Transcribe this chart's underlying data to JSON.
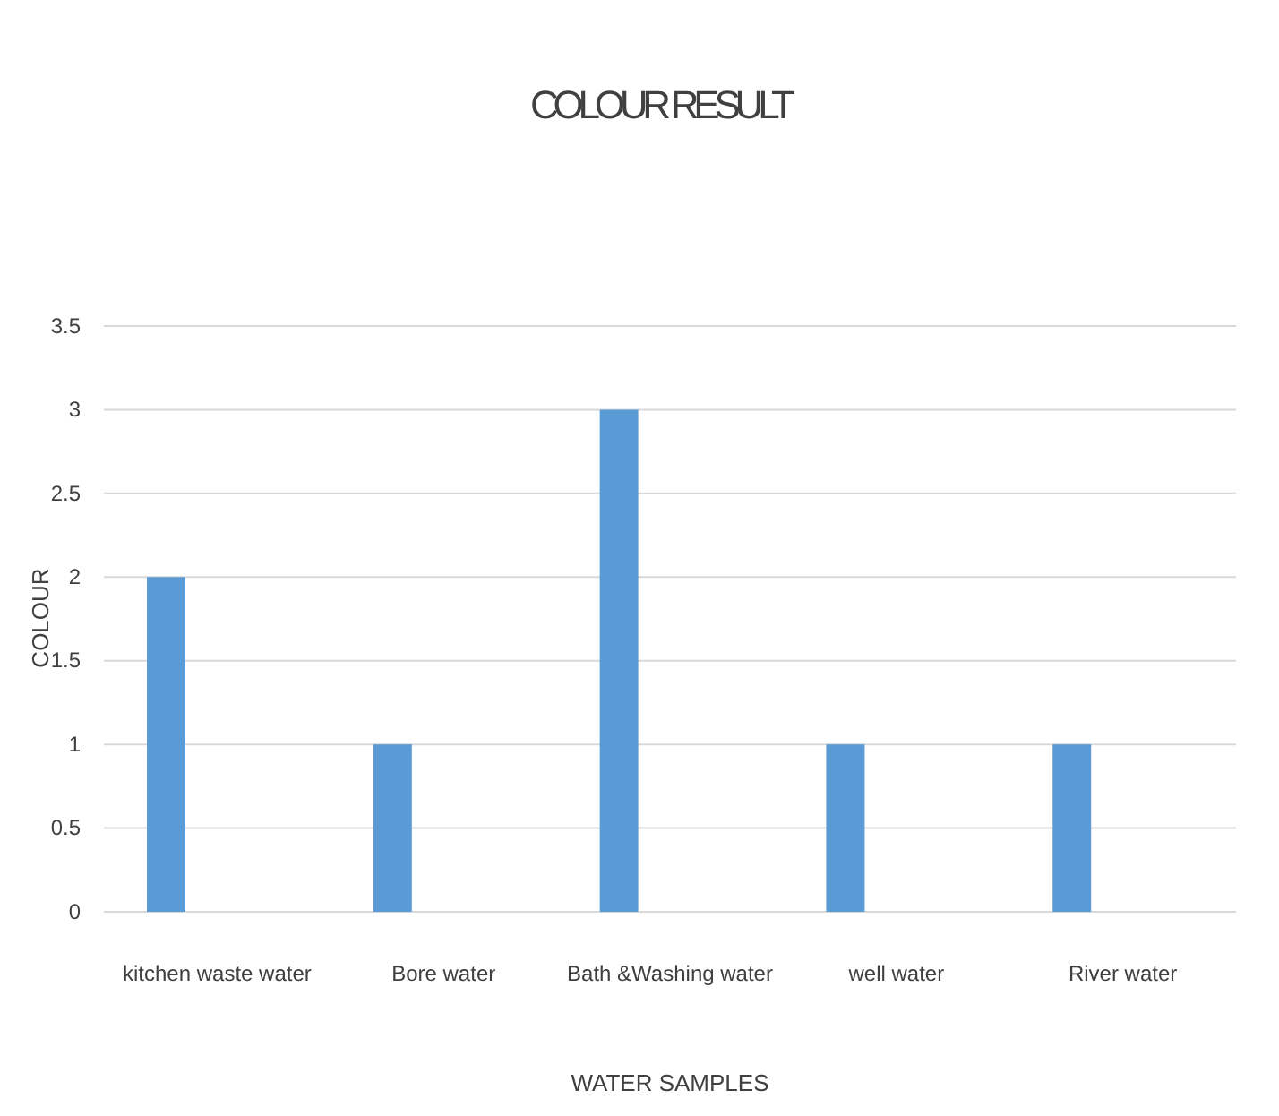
{
  "chart_data": {
    "type": "bar",
    "title": "COLOUR RESULT",
    "xlabel": "WATER SAMPLES",
    "ylabel": "COLOUR",
    "categories": [
      "kitchen waste water",
      "Bore water",
      "Bath &Washing water",
      "well water",
      "River water"
    ],
    "values": [
      2,
      1,
      3,
      1,
      1
    ],
    "color": "#5b9bd5",
    "ylim": [
      0,
      3.5
    ],
    "yticks": [
      0,
      0.5,
      1,
      1.5,
      2,
      2.5,
      3,
      3.5
    ],
    "grid": "y"
  }
}
